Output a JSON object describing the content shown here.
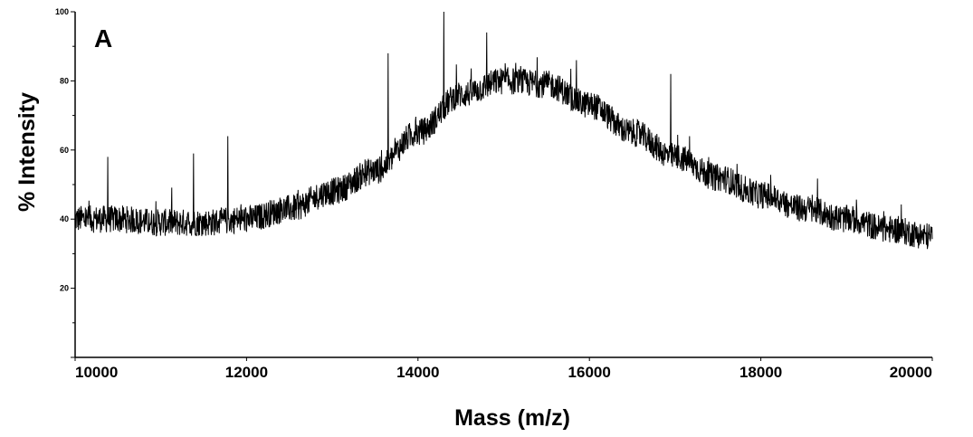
{
  "chart_data": {
    "type": "line",
    "panel_label": "A",
    "title": "",
    "xlabel": "Mass (m/z)",
    "ylabel": "% Intensity",
    "xlim": [
      10000,
      20000
    ],
    "ylim": [
      0,
      100
    ],
    "x_ticks": [
      10000,
      12000,
      14000,
      16000,
      18000,
      20000
    ],
    "x_tick_labels": [
      "10000",
      "12000",
      "14000",
      "16000",
      "18000",
      "20000"
    ],
    "y_ticks": [
      20,
      40,
      60,
      80,
      100
    ],
    "y_tick_labels": [
      "20",
      "40",
      "60",
      "80",
      "100"
    ],
    "grid": false,
    "line_color": "#000000",
    "series": [
      {
        "x": [
          10000,
          10500,
          11000,
          11500,
          12000,
          12500,
          13000,
          13500,
          14000,
          14500,
          15000,
          15500,
          16000,
          16500,
          17000,
          17500,
          18000,
          18500,
          19000,
          19500,
          20000
        ],
        "values": [
          40,
          40,
          39,
          39,
          40,
          43,
          48,
          54,
          65,
          76,
          80,
          79,
          73,
          65,
          58,
          52,
          47,
          43,
          40,
          37,
          35
        ],
        "noise_amplitude": 4,
        "spikes": [
          {
            "x": 10380,
            "y": 58
          },
          {
            "x": 11380,
            "y": 59
          },
          {
            "x": 11780,
            "y": 64
          },
          {
            "x": 13650,
            "y": 88
          },
          {
            "x": 14300,
            "y": 100
          },
          {
            "x": 14800,
            "y": 94
          },
          {
            "x": 15850,
            "y": 86
          },
          {
            "x": 16950,
            "y": 82
          }
        ]
      }
    ]
  }
}
